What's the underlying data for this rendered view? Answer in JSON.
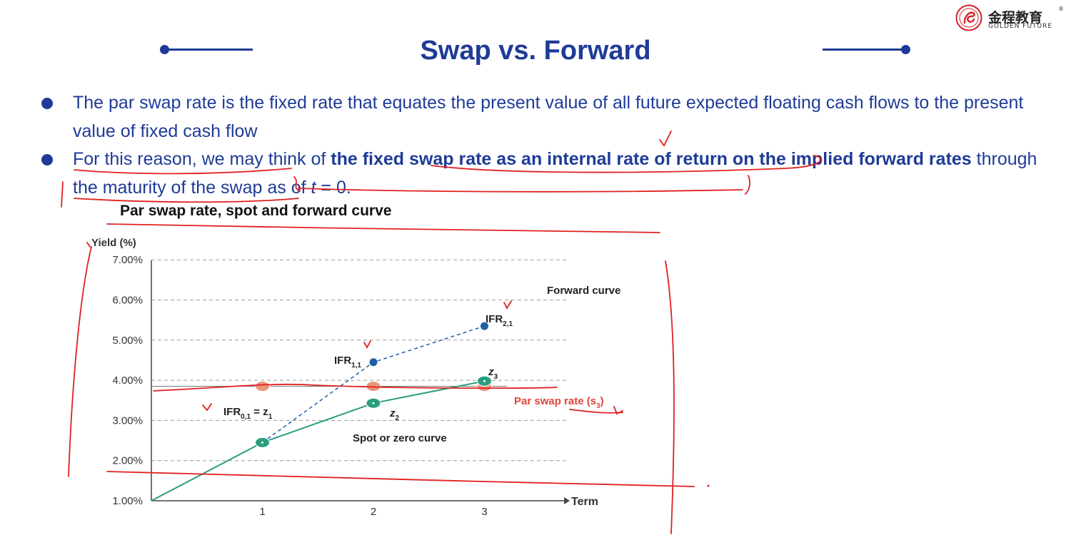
{
  "logo": {
    "chinese_name": "金程教育",
    "english_name": "GOLDEN FUTURE",
    "registered_mark": "®",
    "brand_color": "#d4222a"
  },
  "slide": {
    "title": "Swap vs. Forward",
    "bullets": [
      {
        "text": "The par swap rate is the fixed rate that equates the present value of all future expected floating cash flows to the present value of fixed cash flow"
      },
      {
        "lead": "For this reason, we may think of ",
        "bold": "the fixed swap rate as an internal rate of return on the implied forward rates",
        "tail_before_var": " through the maturity of the swap as of ",
        "var": "t",
        "tail_after_var": " = 0."
      }
    ],
    "accent_color": "#1f3b97",
    "annotation_color": "#e02020"
  },
  "chart_data": {
    "type": "line",
    "title": "Par swap rate, spot and forward curve",
    "ylabel": "Yield (%)",
    "xlabel": "Term",
    "x_ticks": [
      "1",
      "2",
      "3"
    ],
    "y_ticks": [
      "1.00%",
      "2.00%",
      "3.00%",
      "4.00%",
      "5.00%",
      "6.00%",
      "7.00%"
    ],
    "ylim": [
      1.0,
      7.0
    ],
    "grid": "dashed horizontal",
    "series": [
      {
        "name": "Spot or zero curve",
        "color": "#2a9d80",
        "style": "solid",
        "points": [
          [
            0,
            1.0
          ],
          [
            1,
            2.45
          ],
          [
            2,
            3.43
          ],
          [
            3,
            3.98
          ]
        ]
      },
      {
        "name": "Forward curve",
        "color": "#1e5fa8",
        "style": "dashed",
        "points": [
          [
            1,
            2.45
          ],
          [
            2,
            4.45
          ],
          [
            3,
            5.35
          ]
        ]
      },
      {
        "name": "Par swap rate",
        "color": "#e9967a",
        "style": "marker",
        "points": [
          [
            1,
            3.85
          ],
          [
            2,
            3.85
          ],
          [
            3,
            3.85
          ]
        ]
      }
    ],
    "point_labels": [
      {
        "text": "IFR",
        "sub": "0,1",
        "tail": " = z",
        "tail_sub": "1",
        "x": 1,
        "y": 2.45
      },
      {
        "text": "IFR",
        "sub": "1,1",
        "tail": "",
        "tail_sub": "",
        "x": 2,
        "y": 4.45
      },
      {
        "text": "IFR",
        "sub": "2,1",
        "tail": "",
        "tail_sub": "",
        "x": 3,
        "y": 5.35
      },
      {
        "text": "z",
        "sub": "2",
        "tail": "",
        "tail_sub": "",
        "x": 2,
        "y": 3.43
      },
      {
        "text": "z",
        "sub": "3",
        "tail": "",
        "tail_sub": "",
        "x": 3,
        "y": 3.98
      }
    ],
    "par_swap_label": {
      "text": "Par swap rate (s",
      "sub": "3",
      "close": ")",
      "color": "#e0453a"
    },
    "curve_labels": {
      "forward": "Forward curve",
      "spot": "Spot or zero curve"
    }
  }
}
